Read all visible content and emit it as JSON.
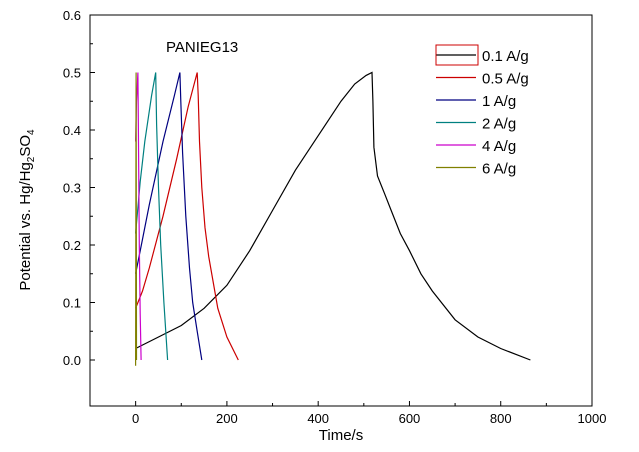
{
  "chart_data": {
    "type": "line",
    "title": "",
    "annotation": "PANIEG13",
    "xlabel": "Time/s",
    "ylabel_parts": {
      "main": "Potential vs. Hg/Hg",
      "sub1": "2",
      "mid": "SO",
      "sub2": "4"
    },
    "xlim": [
      -100,
      1000
    ],
    "ylim": [
      -0.08,
      0.6
    ],
    "xticks": [
      0,
      200,
      400,
      600,
      800,
      1000
    ],
    "yticks": [
      0.0,
      0.1,
      0.2,
      0.3,
      0.4,
      0.5,
      0.6
    ],
    "ytick_labels": [
      "0.0",
      "0.1",
      "0.2",
      "0.3",
      "0.4",
      "0.5",
      "0.6"
    ],
    "grid": false,
    "legend_position": "top-right",
    "series": [
      {
        "name": "0.1 A/g",
        "color": "#000000",
        "x": [
          0,
          50,
          100,
          150,
          200,
          250,
          300,
          350,
          400,
          450,
          480,
          505,
          518,
          520,
          522,
          530,
          545,
          560,
          580,
          600,
          625,
          650,
          700,
          750,
          800,
          865
        ],
        "y": [
          0.02,
          0.04,
          0.06,
          0.09,
          0.13,
          0.19,
          0.26,
          0.33,
          0.39,
          0.45,
          0.48,
          0.495,
          0.5,
          0.45,
          0.37,
          0.32,
          0.29,
          0.26,
          0.22,
          0.19,
          0.15,
          0.12,
          0.07,
          0.04,
          0.02,
          0.0
        ]
      },
      {
        "name": "0.5 A/g",
        "color": "#cc0000",
        "x": [
          0,
          15,
          30,
          60,
          90,
          115,
          135,
          137,
          140,
          145,
          152,
          160,
          180,
          200,
          225
        ],
        "y": [
          0.09,
          0.12,
          0.16,
          0.25,
          0.35,
          0.44,
          0.5,
          0.46,
          0.38,
          0.3,
          0.23,
          0.18,
          0.09,
          0.04,
          0.0
        ]
      },
      {
        "name": "1 A/g",
        "color": "#000080",
        "x": [
          0,
          15,
          30,
          60,
          85,
          97,
          99,
          103,
          110,
          118,
          125,
          135,
          145
        ],
        "y": [
          0.15,
          0.21,
          0.27,
          0.38,
          0.46,
          0.5,
          0.45,
          0.36,
          0.25,
          0.16,
          0.1,
          0.05,
          0.0
        ]
      },
      {
        "name": "2 A/g",
        "color": "#008080",
        "x": [
          0,
          10,
          20,
          35,
          44,
          46,
          50,
          55,
          62,
          70
        ],
        "y": [
          0.22,
          0.31,
          0.38,
          0.46,
          0.5,
          0.41,
          0.3,
          0.2,
          0.1,
          0.0
        ]
      },
      {
        "name": "4 A/g",
        "color": "#cc00cc",
        "x": [
          0,
          2,
          5,
          6,
          8,
          10,
          12
        ],
        "y": [
          0.38,
          0.45,
          0.5,
          0.4,
          0.2,
          0.08,
          0.0
        ]
      },
      {
        "name": "6 A/g",
        "color": "#808000",
        "x": [
          0,
          0.5,
          1,
          1.5,
          2
        ],
        "y": [
          -0.01,
          0.3,
          0.5,
          0.25,
          0.0
        ]
      }
    ]
  }
}
